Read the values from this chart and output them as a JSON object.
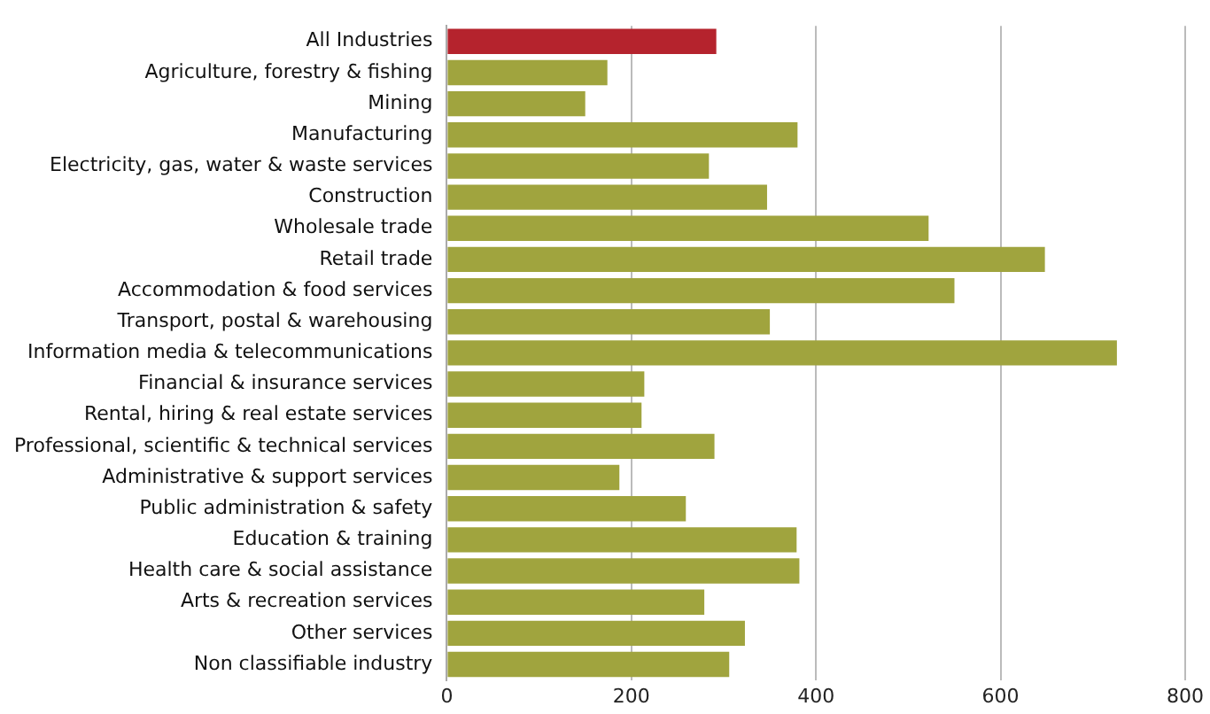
{
  "chart_data": {
    "type": "bar",
    "orientation": "horizontal",
    "categories": [
      "All Industries",
      "Agriculture, forestry & fishing",
      "Mining",
      "Manufacturing",
      "Electricity, gas, water & waste services",
      "Construction",
      "Wholesale trade",
      "Retail trade",
      "Accommodation & food services",
      "Transport, postal & warehousing",
      "Information media & telecommunications",
      "Financial & insurance services",
      "Rental, hiring & real estate services",
      "Professional, scientific & technical services",
      "Administrative & support services",
      "Public administration & safety",
      "Education & training",
      "Health care & social assistance",
      "Arts & recreation services",
      "Other services",
      "Non classifiable industry"
    ],
    "values": [
      292,
      174,
      150,
      380,
      284,
      347,
      522,
      648,
      550,
      350,
      726,
      214,
      211,
      290,
      187,
      259,
      379,
      382,
      279,
      323,
      306
    ],
    "colors": [
      "#b5232d",
      "#a0a43e",
      "#a0a43e",
      "#a0a43e",
      "#a0a43e",
      "#a0a43e",
      "#a0a43e",
      "#a0a43e",
      "#a0a43e",
      "#a0a43e",
      "#a0a43e",
      "#a0a43e",
      "#a0a43e",
      "#a0a43e",
      "#a0a43e",
      "#a0a43e",
      "#a0a43e",
      "#a0a43e",
      "#a0a43e",
      "#a0a43e",
      "#a0a43e"
    ],
    "xlim": [
      0,
      800
    ],
    "xticks": [
      0,
      200,
      400,
      600,
      800
    ],
    "grid": "x",
    "legend": false
  }
}
